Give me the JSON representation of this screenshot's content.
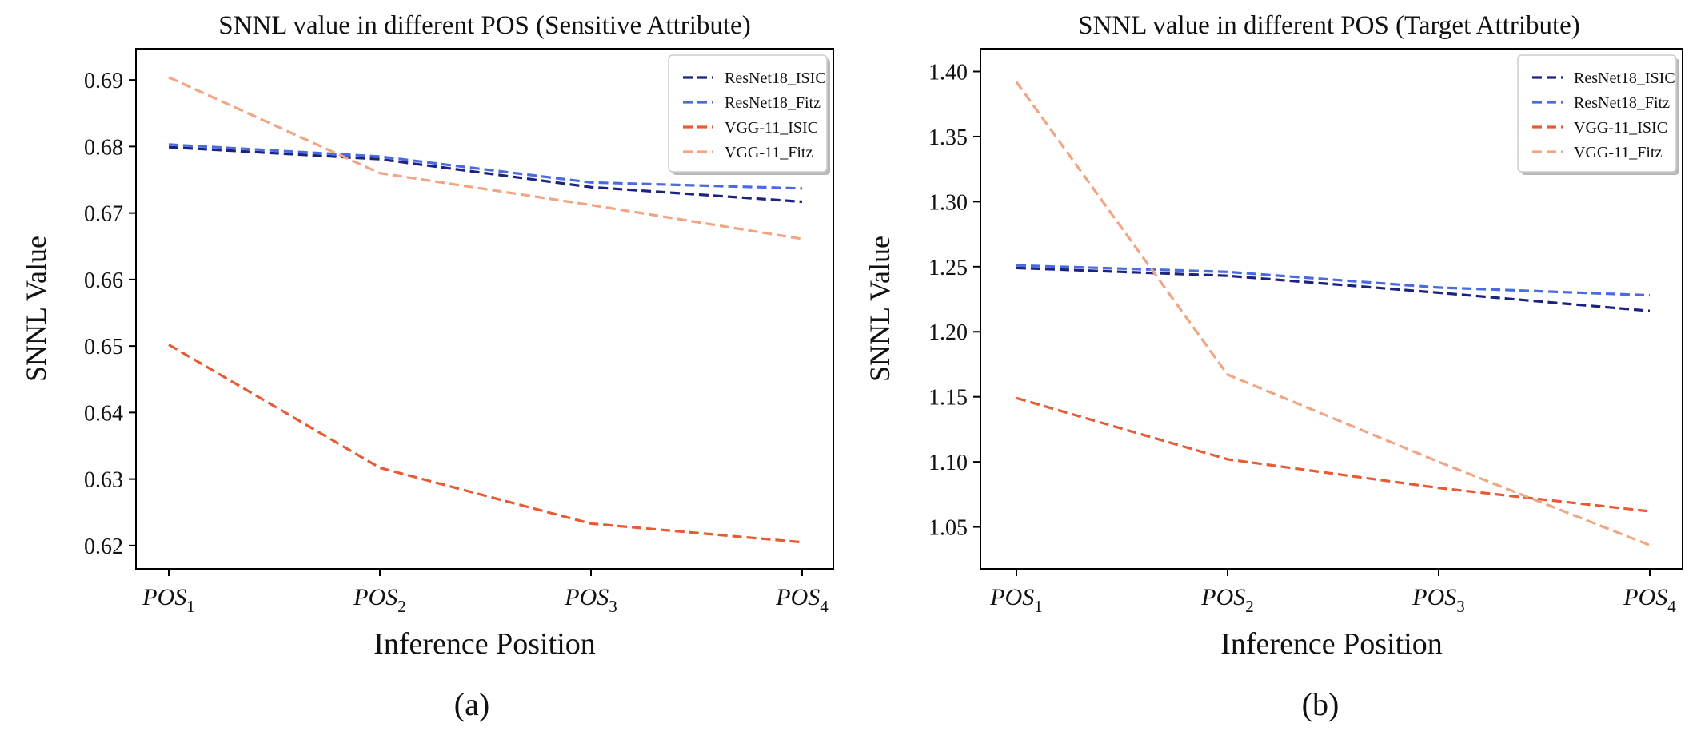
{
  "chart_data": [
    {
      "type": "line",
      "panel": "(a)",
      "title": "SNNL value in different POS (Sensitive Attribute)",
      "xlabel": "Inference Position",
      "ylabel": "SNNL Value",
      "x": [
        "POS1",
        "POS2",
        "POS3",
        "POS4"
      ],
      "x_tick_base": "POS",
      "x_tick_subscripts": [
        "1",
        "2",
        "3",
        "4"
      ],
      "ylim": [
        0.6165,
        0.6947
      ],
      "yticks": [
        0.62,
        0.63,
        0.64,
        0.65,
        0.66,
        0.67,
        0.68,
        0.69
      ],
      "ytick_labels": [
        "0.62",
        "0.63",
        "0.64",
        "0.65",
        "0.66",
        "0.67",
        "0.68",
        "0.69"
      ],
      "legend_position": "top-right",
      "grid": false,
      "series": [
        {
          "name": "ResNet18_ISIC",
          "color": "#1c237e",
          "values": [
            0.6799,
            0.6781,
            0.6739,
            0.6717
          ]
        },
        {
          "name": "ResNet18_Fitz",
          "color": "#4a6be0",
          "values": [
            0.6803,
            0.6785,
            0.6746,
            0.6737
          ]
        },
        {
          "name": "VGG-11_ISIC",
          "color": "#e85a33",
          "values": [
            0.6502,
            0.6317,
            0.6233,
            0.6205
          ]
        },
        {
          "name": "VGG-11_Fitz",
          "color": "#f2a483",
          "values": [
            0.6904,
            0.676,
            0.6712,
            0.6661
          ]
        }
      ]
    },
    {
      "type": "line",
      "panel": "(b)",
      "title": "SNNL value in different POS (Target Attribute)",
      "xlabel": "Inference Position",
      "ylabel": "SNNL Value",
      "x": [
        "POS1",
        "POS2",
        "POS3",
        "POS4"
      ],
      "x_tick_base": "POS",
      "x_tick_subscripts": [
        "1",
        "2",
        "3",
        "4"
      ],
      "ylim": [
        1.0178,
        1.4175
      ],
      "yticks": [
        1.05,
        1.1,
        1.15,
        1.2,
        1.25,
        1.3,
        1.35,
        1.4
      ],
      "ytick_labels": [
        "1.05",
        "1.10",
        "1.15",
        "1.20",
        "1.25",
        "1.30",
        "1.35",
        "1.40"
      ],
      "legend_position": "top-right",
      "grid": false,
      "series": [
        {
          "name": "ResNet18_ISIC",
          "color": "#1c237e",
          "values": [
            1.249,
            1.243,
            1.23,
            1.216
          ]
        },
        {
          "name": "ResNet18_Fitz",
          "color": "#4a6be0",
          "values": [
            1.251,
            1.246,
            1.234,
            1.228
          ]
        },
        {
          "name": "VGG-11_ISIC",
          "color": "#e85a33",
          "values": [
            1.149,
            1.102,
            1.08,
            1.062
          ]
        },
        {
          "name": "VGG-11_Fitz",
          "color": "#f2a483",
          "values": [
            1.392,
            1.167,
            1.1,
            1.036
          ]
        }
      ]
    }
  ]
}
